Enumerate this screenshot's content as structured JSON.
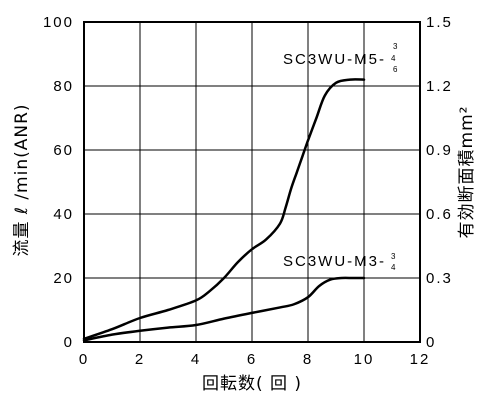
{
  "chart_data": {
    "type": "line",
    "xlabel": "回転数( 回 )",
    "ylabel": "流量 ℓ /min(ANR)",
    "y2label": "有効断面積mm²",
    "xlim": [
      0,
      12
    ],
    "ylim": [
      0,
      100
    ],
    "y2lim": [
      0,
      1.5
    ],
    "grid": true,
    "x_ticks": [
      "0",
      "2",
      "4",
      "6",
      "8",
      "10",
      "12"
    ],
    "y_ticks": [
      "0",
      "20",
      "40",
      "60",
      "80",
      "100"
    ],
    "y2_ticks": [
      "0",
      "0.3",
      "0.6",
      "0.9",
      "1.2",
      "1.5"
    ],
    "series": [
      {
        "name": "SC3WU-M5-",
        "name_fraction_top": "3",
        "name_fraction_mid": "4",
        "name_fraction_bottom": "6",
        "x": [
          0,
          1,
          2,
          3,
          4,
          4.5,
          5,
          5.5,
          6,
          6.5,
          7,
          7.2,
          7.4,
          7.6,
          7.8,
          8,
          8.3,
          8.6,
          9,
          9.5,
          10
        ],
        "y": [
          1,
          4,
          7.5,
          10,
          13,
          16,
          20,
          25,
          29,
          32,
          37,
          42,
          48,
          53,
          58,
          63,
          70,
          77,
          81,
          82,
          82
        ]
      },
      {
        "name": "SC3WU-M3-",
        "name_fraction_top": "3",
        "name_fraction_bottom": "4",
        "x": [
          0,
          1,
          2,
          3,
          4,
          5,
          6,
          7,
          7.5,
          8,
          8.4,
          8.8,
          9.2,
          9.6,
          10
        ],
        "y": [
          0.5,
          2.3,
          3.5,
          4.5,
          5.3,
          7.3,
          9.1,
          10.8,
          11.8,
          14,
          17.5,
          19.5,
          20,
          20,
          20
        ]
      }
    ]
  }
}
